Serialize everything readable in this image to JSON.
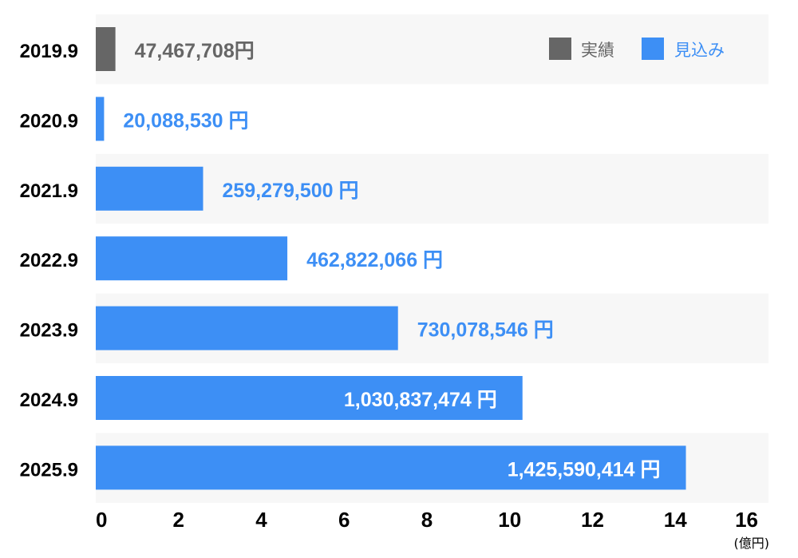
{
  "chart_data": {
    "type": "bar",
    "orientation": "horizontal",
    "categories": [
      "2019.9",
      "2020.9",
      "2021.9",
      "2022.9",
      "2023.9",
      "2024.9",
      "2025.9"
    ],
    "values": [
      47467708,
      20088530,
      259279500,
      462822066,
      730078546,
      1030837474,
      1425590414
    ],
    "series_type": [
      "実績",
      "見込み",
      "見込み",
      "見込み",
      "見込み",
      "見込み",
      "見込み"
    ],
    "data_labels": [
      "47,467,708円",
      "20,088,530 円",
      "259,279,500 円",
      "462,822,066 円",
      "730,078,546 円",
      "1,030,837,474 円",
      "1,425,590,414 円"
    ],
    "xticks": [
      "0",
      "2",
      "4",
      "6",
      "8",
      "10",
      "12",
      "14",
      "16"
    ],
    "xlim": [
      0,
      16
    ],
    "xunit": "(億円)",
    "legend": [
      {
        "name": "実績",
        "color": "#666666"
      },
      {
        "name": "見込み",
        "color": "#3d8ff5"
      }
    ],
    "legend_position": "top-right",
    "grid": false,
    "colors": {
      "actual": "#666666",
      "forecast": "#3d8ff5",
      "band": "#f7f7f7",
      "axis_text": "#000000"
    }
  }
}
